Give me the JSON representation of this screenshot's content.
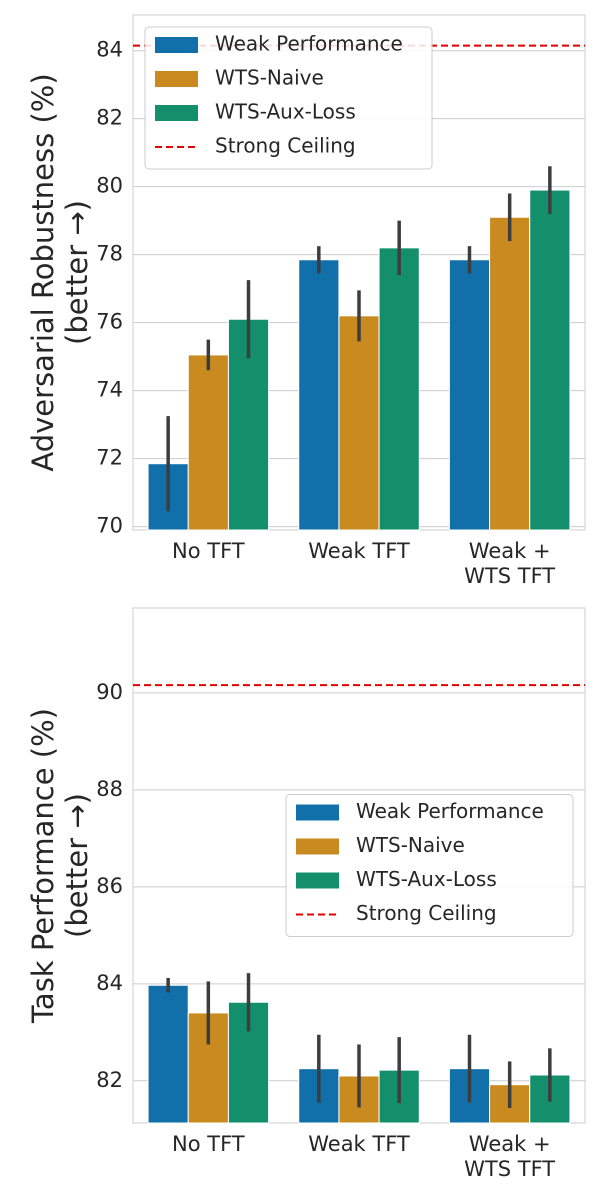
{
  "chart_data": [
    {
      "type": "bar",
      "ylabel": [
        "Adversarial Robustness (%)",
        "(better →)"
      ],
      "categories": [
        "No TFT",
        "Weak TFT",
        "Weak +\nWTS TFT"
      ],
      "series": [
        {
          "name": "Weak Performance",
          "color": "#1170aa",
          "values": [
            71.85,
            77.85,
            77.85
          ],
          "errors": [
            1.4,
            0.4,
            0.4
          ]
        },
        {
          "name": "WTS-Naive",
          "color": "#c98b20",
          "values": [
            75.05,
            76.2,
            79.1
          ],
          "errors": [
            0.45,
            0.75,
            0.7
          ]
        },
        {
          "name": "WTS-Aux-Loss",
          "color": "#148f6b",
          "values": [
            76.1,
            78.2,
            79.9
          ],
          "errors": [
            1.15,
            0.8,
            0.7
          ]
        }
      ],
      "hline": {
        "name": "Strong Ceiling",
        "value": 84.15,
        "color": "#e00000"
      },
      "ylim": [
        69.9,
        85.05
      ],
      "yticks": [
        70,
        72,
        74,
        76,
        78,
        80,
        82,
        84
      ],
      "grid": true,
      "legend": "upper-left"
    },
    {
      "type": "bar",
      "ylabel": [
        "Task Performance (%)",
        "(better →)"
      ],
      "categories": [
        "No TFT",
        "Weak TFT",
        "Weak +\nWTS TFT"
      ],
      "series": [
        {
          "name": "Weak Performance",
          "color": "#1170aa",
          "values": [
            83.97,
            82.25,
            82.25
          ],
          "errors": [
            0.15,
            0.7,
            0.7
          ]
        },
        {
          "name": "WTS-Naive",
          "color": "#c98b20",
          "values": [
            83.4,
            82.1,
            81.92
          ],
          "errors": [
            0.65,
            0.65,
            0.48
          ]
        },
        {
          "name": "WTS-Aux-Loss",
          "color": "#148f6b",
          "values": [
            83.62,
            82.22,
            82.12
          ],
          "errors": [
            0.6,
            0.68,
            0.55
          ]
        }
      ],
      "hline": {
        "name": "Strong Ceiling",
        "value": 90.16,
        "color": "#e00000"
      },
      "ylim": [
        81.13,
        91.75
      ],
      "yticks": [
        82,
        84,
        86,
        88,
        90
      ],
      "grid": true,
      "legend": "center-right"
    }
  ]
}
